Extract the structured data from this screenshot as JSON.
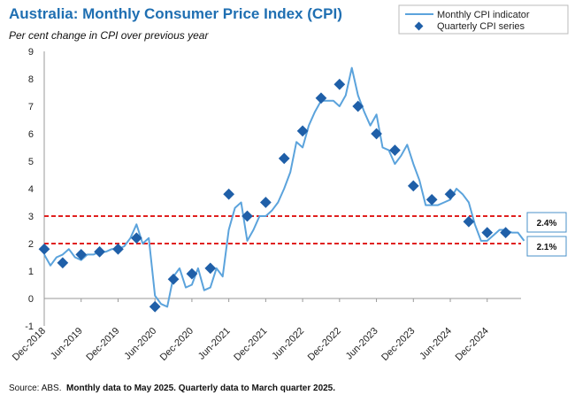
{
  "chart_data": {
    "type": "line",
    "title": "Australia: Monthly Consumer Price Index (CPI)",
    "subtitle": "Per cent change in CPI over previous year",
    "source_prefix": "Source: ABS.",
    "source_note": "Monthly data to May 2025. Quarterly data to March quarter 2025.",
    "ylim": [
      -1,
      9
    ],
    "yticks": [
      -1,
      0,
      1,
      2,
      3,
      4,
      5,
      6,
      7,
      8,
      9
    ],
    "xtick_labels": [
      "Dec-2018",
      "Jun-2019",
      "Dec-2019",
      "Jun-2020",
      "Dec-2020",
      "Jun-2021",
      "Dec-2021",
      "Jun-2022",
      "Dec-2022",
      "Jun-2023",
      "Dec-2023",
      "Jun-2024",
      "Dec-2024"
    ],
    "x_start": "Dec-2018",
    "x_end": "May-2025",
    "target_band": [
      2,
      3
    ],
    "callouts": [
      "2.4%",
      "2.1%"
    ],
    "legend": {
      "monthly": "Monthly CPI indicator",
      "quarterly": "Quarterly CPI series"
    },
    "colors": {
      "title": "#1f6fb2",
      "line": "#5ba3dc",
      "marker": "#1f5fa8",
      "band": "#e0201f",
      "axis": "#999999",
      "callout_border": "#4a90c8"
    },
    "series": [
      {
        "name": "Monthly CPI indicator",
        "values": [
          1.6,
          1.2,
          1.5,
          1.6,
          1.8,
          1.5,
          1.4,
          1.6,
          1.6,
          1.7,
          1.7,
          1.8,
          1.8,
          1.9,
          2.2,
          2.7,
          2.0,
          2.2,
          0.1,
          -0.2,
          -0.3,
          0.8,
          1.1,
          0.4,
          0.5,
          1.1,
          0.3,
          0.4,
          1.1,
          0.8,
          2.5,
          3.3,
          3.5,
          2.1,
          2.5,
          3.0,
          3.0,
          3.2,
          3.5,
          4.0,
          4.6,
          5.7,
          5.5,
          6.3,
          6.8,
          7.2,
          7.2,
          7.2,
          7.0,
          7.4,
          8.4,
          7.4,
          6.8,
          6.3,
          6.7,
          5.5,
          5.4,
          4.9,
          5.2,
          5.6,
          4.9,
          4.3,
          3.4,
          3.4,
          3.4,
          3.5,
          3.6,
          4.0,
          3.8,
          3.5,
          2.7,
          2.1,
          2.1,
          2.3,
          2.5,
          2.5,
          2.4,
          2.4,
          2.1
        ]
      },
      {
        "name": "Quarterly CPI series",
        "values": [
          1.8,
          1.3,
          1.6,
          1.7,
          1.8,
          2.2,
          -0.3,
          0.7,
          0.9,
          1.1,
          3.8,
          3.0,
          3.5,
          5.1,
          6.1,
          7.3,
          7.8,
          7.0,
          6.0,
          5.4,
          4.1,
          3.6,
          3.8,
          2.8,
          2.4,
          2.4
        ]
      }
    ]
  }
}
